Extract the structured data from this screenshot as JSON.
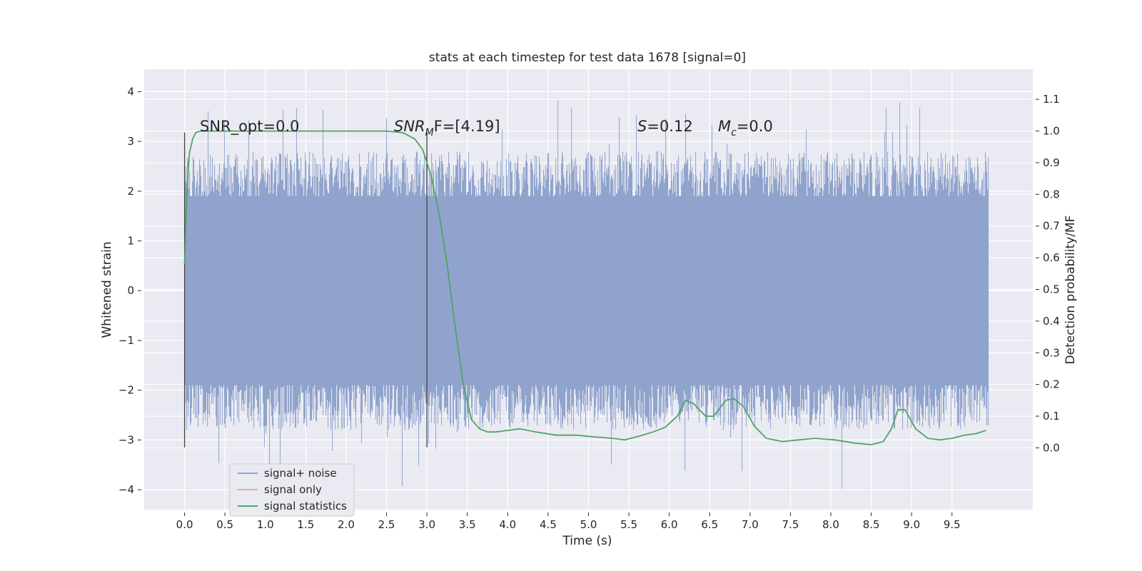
{
  "chart_data": {
    "type": "line",
    "title": "stats at each timestep for test data 1678 [signal=0]",
    "xlabel": "Time (s)",
    "ylabel": "Whitened strain",
    "ylabel_right": "Detection probability/MF",
    "xlim": [
      -0.5,
      10.5
    ],
    "ylim": [
      -4.4,
      4.45
    ],
    "ylim_right": [
      -0.195,
      1.195
    ],
    "grid": true,
    "legend_position": "lower-left",
    "x_ticks": [
      "0.0",
      "0.5",
      "1.0",
      "1.5",
      "2.0",
      "2.5",
      "3.0",
      "3.5",
      "4.0",
      "4.5",
      "5.0",
      "5.5",
      "6.0",
      "6.5",
      "7.0",
      "7.5",
      "8.0",
      "8.5",
      "9.0",
      "9.5"
    ],
    "y_ticks": [
      "4",
      "3",
      "2",
      "1",
      "0",
      "−1",
      "−2",
      "−3",
      "−4"
    ],
    "y_ticks_right": [
      "1.1",
      "1.0",
      "0.9",
      "0.8",
      "0.7",
      "0.6",
      "0.5",
      "0.4",
      "0.3",
      "0.2",
      "0.1",
      "0.0"
    ],
    "annotations": {
      "snr_opt": "SNR_opt=0.0",
      "snr_mf_base": "SNR",
      "snr_mf_sub": "M",
      "snr_mf_rest": "F=[4.19]",
      "s_sym": "S",
      "s_val": "=0.12",
      "mc_base": "M",
      "mc_sub": "c",
      "mc_val": "=0.0"
    },
    "vlines": [
      0.0,
      3.0
    ],
    "vline_range": [
      -3.15,
      3.18
    ],
    "noise_envelope": {
      "x_range": [
        0.0,
        9.95
      ],
      "typical_amplitude": 2.0,
      "max": 4.05,
      "min": -4.05
    },
    "series": [
      {
        "name": "signal+ noise",
        "color": "#8fa3cc",
        "axis": "left",
        "kind": "noise"
      },
      {
        "name": "signal only",
        "color": "#e8a98a",
        "axis": "left",
        "x": [],
        "y": []
      },
      {
        "name": "signal statistics",
        "color": "#4ea562",
        "axis": "right",
        "x": [
          0.0,
          0.03,
          0.06,
          0.1,
          0.14,
          0.2,
          0.3,
          0.5,
          1.0,
          1.5,
          2.0,
          2.5,
          2.7,
          2.85,
          2.95,
          3.05,
          3.15,
          3.25,
          3.35,
          3.45,
          3.55,
          3.65,
          3.75,
          3.85,
          4.0,
          4.15,
          4.35,
          4.6,
          4.85,
          5.05,
          5.3,
          5.45,
          5.6,
          5.8,
          5.95,
          6.1,
          6.2,
          6.3,
          6.45,
          6.55,
          6.7,
          6.8,
          6.92,
          7.05,
          7.2,
          7.4,
          7.6,
          7.8,
          8.05,
          8.3,
          8.5,
          8.65,
          8.75,
          8.83,
          8.92,
          9.05,
          9.2,
          9.35,
          9.5,
          9.65,
          9.8,
          9.92
        ],
        "y": [
          0.58,
          0.82,
          0.93,
          0.975,
          0.995,
          1.0,
          1.0,
          1.0,
          1.0,
          1.0,
          1.0,
          1.0,
          0.995,
          0.975,
          0.94,
          0.86,
          0.74,
          0.58,
          0.38,
          0.2,
          0.09,
          0.06,
          0.05,
          0.05,
          0.055,
          0.06,
          0.05,
          0.04,
          0.04,
          0.035,
          0.03,
          0.025,
          0.035,
          0.05,
          0.065,
          0.1,
          0.15,
          0.14,
          0.1,
          0.1,
          0.15,
          0.155,
          0.13,
          0.07,
          0.03,
          0.02,
          0.025,
          0.03,
          0.025,
          0.015,
          0.01,
          0.02,
          0.06,
          0.12,
          0.12,
          0.06,
          0.03,
          0.025,
          0.03,
          0.04,
          0.045,
          0.055
        ]
      }
    ]
  }
}
